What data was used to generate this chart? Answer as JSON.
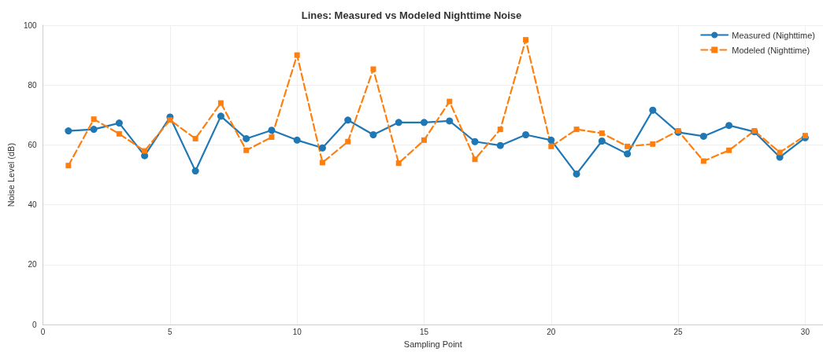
{
  "chart_data": {
    "type": "line",
    "title": "Lines: Measured vs Modeled Nighttime Noise",
    "xlabel": "Sampling Point",
    "ylabel": "Noise Level (dB)",
    "x": [
      1,
      2,
      3,
      4,
      5,
      6,
      7,
      8,
      9,
      10,
      11,
      12,
      13,
      14,
      15,
      16,
      17,
      18,
      19,
      20,
      21,
      22,
      23,
      24,
      25,
      26,
      27,
      28,
      29,
      30
    ],
    "series": [
      {
        "name": "Measured (Nighttime)",
        "color": "#1f77b4",
        "marker": "circle",
        "line_style": "solid",
        "values": [
          64.7,
          65.2,
          67.3,
          56.4,
          69.3,
          51.3,
          69.6,
          62.1,
          64.9,
          61.6,
          59.0,
          68.3,
          63.4,
          67.5,
          67.5,
          68.0,
          61.1,
          59.8,
          63.4,
          61.6,
          50.3,
          61.3,
          57.0,
          71.6,
          64.2,
          62.9,
          66.5,
          64.4,
          55.9,
          62.4
        ]
      },
      {
        "name": "Modeled (Nighttime)",
        "color": "#ff7f0e",
        "marker": "square",
        "line_style": "dashed",
        "values": [
          53.1,
          68.6,
          63.7,
          58.0,
          68.3,
          62.1,
          74.0,
          58.2,
          62.6,
          90.0,
          54.1,
          61.1,
          85.3,
          53.9,
          61.6,
          74.5,
          55.2,
          65.2,
          95.1,
          59.5,
          65.2,
          63.9,
          59.5,
          60.3,
          64.7,
          54.6,
          58.2,
          64.7,
          57.5,
          63.1
        ]
      }
    ],
    "xlim": [
      0,
      30.7
    ],
    "xticks": [
      0,
      5,
      10,
      15,
      20,
      25,
      30
    ],
    "ylim": [
      0,
      100
    ],
    "yticks": [
      0,
      20,
      40,
      60,
      80,
      100
    ],
    "grid": true,
    "legend": "top right"
  }
}
